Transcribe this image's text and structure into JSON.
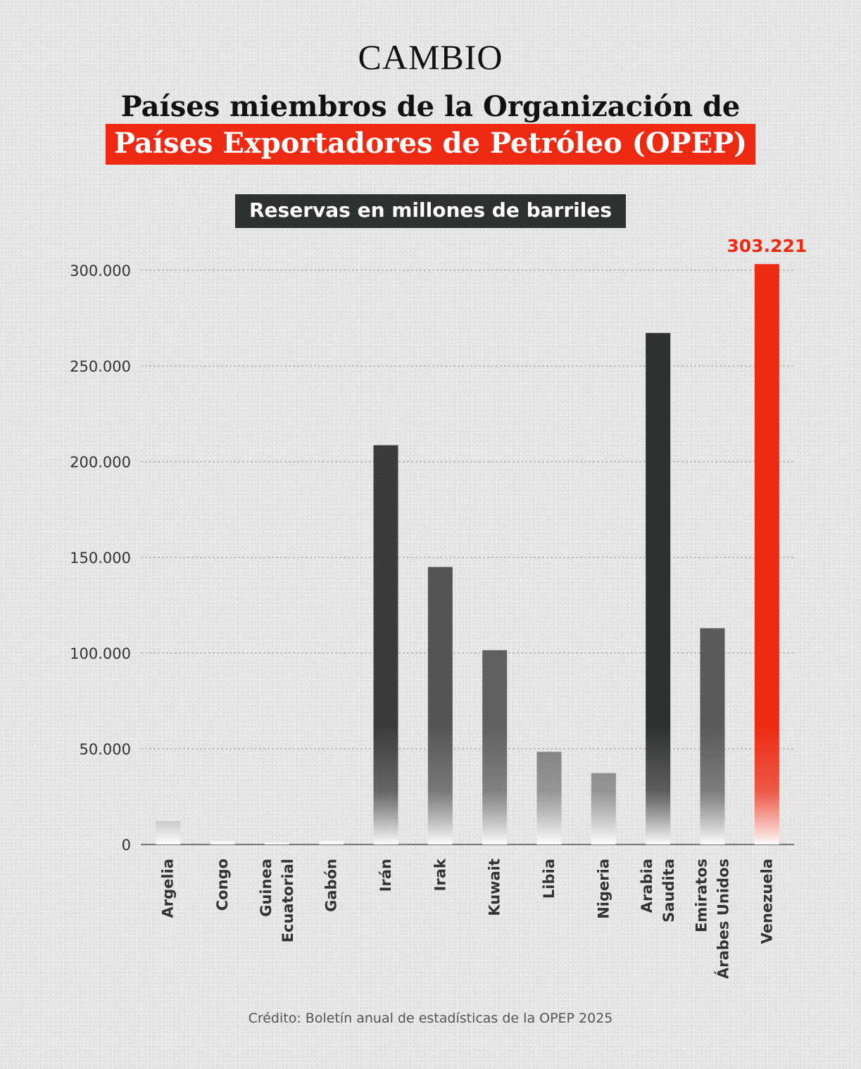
{
  "header": {
    "logo": "CAMBIO",
    "title_line1": "Países miembros de la Organización de",
    "title_line2": "Países Exportadores de Petróleo (OPEP)"
  },
  "credit": "Crédito: Boletín anual de estadísticas de la OPEP 2025",
  "colors": {
    "accent": "#ef2a12",
    "dark_bar": "#2e3131",
    "mid_bar": "#555555",
    "light_bar": "#7a7a7a"
  },
  "chart_data": {
    "type": "bar",
    "title": "Reservas en millones de barriles",
    "xlabel": "",
    "ylabel": "",
    "ylim": [
      0,
      300000
    ],
    "yticks": [
      0,
      50000,
      100000,
      150000,
      200000,
      250000,
      300000
    ],
    "ytick_labels": [
      "0",
      "50.000",
      "100.000",
      "150.000",
      "200.000",
      "250.000",
      "300.000"
    ],
    "grid": true,
    "categories": [
      [
        "Argelia"
      ],
      [
        "Congo"
      ],
      [
        "Guinea",
        "Ecuatorial"
      ],
      [
        "Gabón"
      ],
      [
        "Irán"
      ],
      [
        "Irak"
      ],
      [
        "Kuwait"
      ],
      [
        "Libia"
      ],
      [
        "Nigeria"
      ],
      [
        "Arabia",
        "Saudita"
      ],
      [
        "Emiratos",
        "Árabes Unidos"
      ],
      [
        "Venezuela"
      ]
    ],
    "values": [
      12200,
      1800,
      1100,
      2000,
      208600,
      145000,
      101500,
      48400,
      37300,
      267200,
      113000,
      303221
    ],
    "bar_colors": [
      "#7a7a7a",
      "#7a7a7a",
      "#7a7a7a",
      "#7a7a7a",
      "#3a3c3c",
      "#555555",
      "#606060",
      "#7a7a7a",
      "#7a7a7a",
      "#2e3131",
      "#5a5a5a",
      "#ef2a12"
    ],
    "highlight_label": "303.221",
    "highlight_index": 11
  }
}
